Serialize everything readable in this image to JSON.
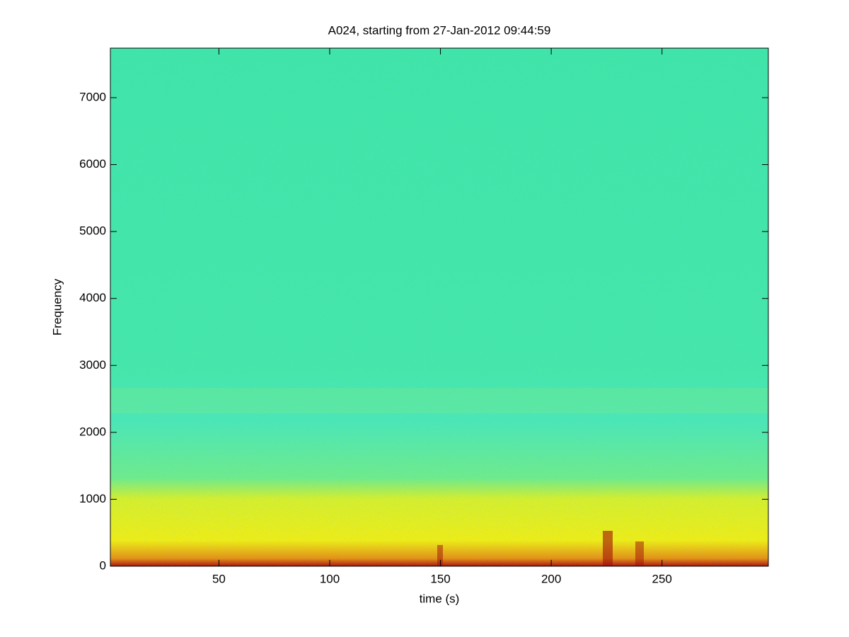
{
  "chart_data": {
    "type": "spectrogram",
    "title": "A024, starting from 27-Jan-2012 09:44:59",
    "x_label": "time (s)",
    "y_label": "Frequency",
    "xlim": [
      1,
      298
    ],
    "xticks": [
      50,
      100,
      150,
      200,
      250
    ],
    "ylim": [
      0,
      7740
    ],
    "yticks": [
      0,
      1000,
      2000,
      3000,
      4000,
      5000,
      6000,
      7000
    ]
  }
}
